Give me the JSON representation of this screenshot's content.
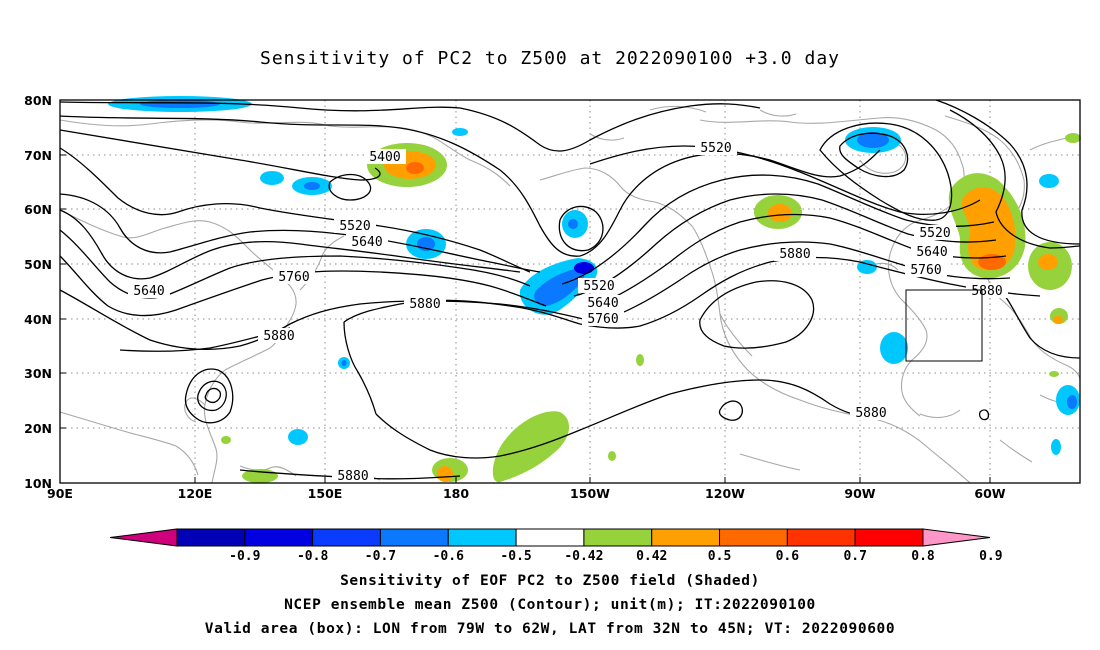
{
  "title": "Sensitivity of PC2 to Z500 at 2022090100 +3.0 day",
  "map": {
    "lon_labels": [
      "90E",
      "120E",
      "150E",
      "180",
      "150W",
      "120W",
      "90W",
      "60W"
    ],
    "lat_labels": [
      "80N",
      "70N",
      "60N",
      "50N",
      "40N",
      "30N",
      "20N",
      "10N"
    ],
    "contour_labels": [
      "5400",
      "5520",
      "5520",
      "5520",
      "5520",
      "5640",
      "5640",
      "5640",
      "5640",
      "5760",
      "5760",
      "5760",
      "5880",
      "5880",
      "5880",
      "5880",
      "5880",
      "5880"
    ],
    "valid_box": {
      "lon": [
        "79W",
        "62W"
      ],
      "lat": [
        "32N",
        "45N"
      ]
    }
  },
  "colorbar": {
    "labels": [
      "-0.9",
      "-0.8",
      "-0.7",
      "-0.6",
      "-0.5",
      "-0.42",
      "0.42",
      "0.5",
      "0.6",
      "0.7",
      "0.8",
      "0.9"
    ],
    "colors": [
      "#d0007c",
      "#0000b4",
      "#0000e0",
      "#0a3cff",
      "#0a78ff",
      "#00c8ff",
      "#ffffff",
      "#96d23c",
      "#ffa000",
      "#ff6a00",
      "#ff3200",
      "#ff0000",
      "#ff96c8"
    ]
  },
  "captions": {
    "line1": "Sensitivity of EOF PC2 to Z500 field (Shaded)",
    "line2": "NCEP ensemble mean Z500 (Contour); unit(m); IT:2022090100",
    "line3": "Valid area (box): LON from 79W to 62W, LAT from 32N to 45N; VT: 2022090600"
  }
}
